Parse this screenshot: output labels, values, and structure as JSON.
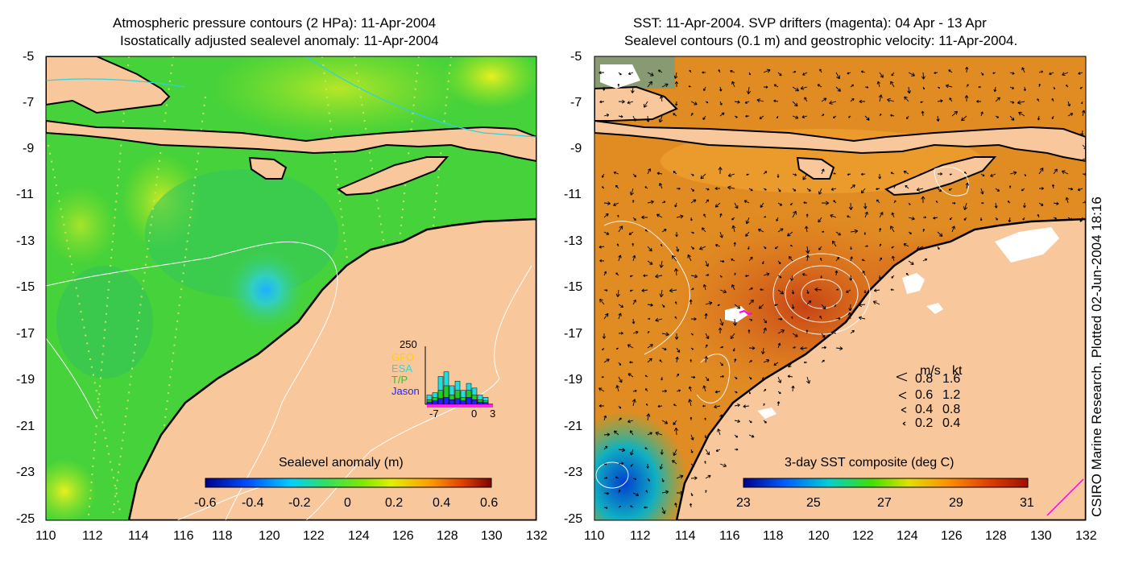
{
  "left_panel": {
    "title_line1": "Atmospheric pressure contours (2 HPa): 11-Apr-2004",
    "title_line2": "Isostatically adjusted sealevel anomaly: 11-Apr-2004",
    "colorbar_label": "Sealevel anomaly (m)",
    "colorbar_ticks": [
      "-0.6",
      "-0.4",
      "-0.2",
      "0",
      "0.2",
      "0.4",
      "0.6"
    ],
    "inset": {
      "ymax_label": "250",
      "legend": [
        {
          "label": "GFO",
          "color": "#ffd000"
        },
        {
          "label": "ESA",
          "color": "#22dddd"
        },
        {
          "label": "T/P",
          "color": "#22cc22"
        },
        {
          "label": "Jason",
          "color": "#2222ff"
        }
      ],
      "x_ticks": [
        "-7",
        "0",
        "3"
      ],
      "bars_total": [
        40,
        50,
        120,
        140,
        80,
        100,
        60,
        90,
        70,
        40,
        30
      ],
      "bars_tp": [
        20,
        30,
        60,
        80,
        40,
        60,
        30,
        60,
        40,
        20,
        15
      ],
      "bars_jason": [
        10,
        15,
        25,
        30,
        20,
        25,
        15,
        30,
        20,
        10,
        8
      ]
    }
  },
  "right_panel": {
    "title_line1": "SST: 11-Apr-2004. SVP drifters (magenta): 04 Apr - 13 Apr",
    "title_line2": "Sealevel contours (0.1 m) and geostrophic velocity: 11-Apr-2004.",
    "colorbar_label": "3-day SST composite (deg C)",
    "colorbar_ticks": [
      "23",
      "25",
      "27",
      "29",
      "31"
    ],
    "velocity_legend": {
      "header_ms": "m/s",
      "header_kt": "kt",
      "rows": [
        {
          "ms": "0.8",
          "kt": "1.6"
        },
        {
          "ms": "0.6",
          "kt": "1.2"
        },
        {
          "ms": "0.4",
          "kt": "0.8"
        },
        {
          "ms": "0.2",
          "kt": "0.4"
        }
      ]
    }
  },
  "axes": {
    "y_ticks": [
      "-5",
      "-7",
      "-9",
      "-11",
      "-13",
      "-15",
      "-17",
      "-19",
      "-21",
      "-23",
      "-25"
    ],
    "x_ticks": [
      "110",
      "112",
      "114",
      "116",
      "118",
      "120",
      "122",
      "124",
      "126",
      "128",
      "130",
      "132"
    ]
  },
  "credit": "CSIRO Marine Research. Plotted 02-Jun-2004 18:16",
  "colors": {
    "land": "#f8c89c",
    "sla_colormap": [
      "#00008f",
      "#0050ff",
      "#00d0ff",
      "#30e060",
      "#60e000",
      "#e0f000",
      "#ffa000",
      "#e04000",
      "#800000"
    ],
    "sst_colormap": [
      "#00008f",
      "#0060ff",
      "#00d0d0",
      "#40e000",
      "#e0e000",
      "#ff9000",
      "#e04000",
      "#a01000"
    ]
  }
}
